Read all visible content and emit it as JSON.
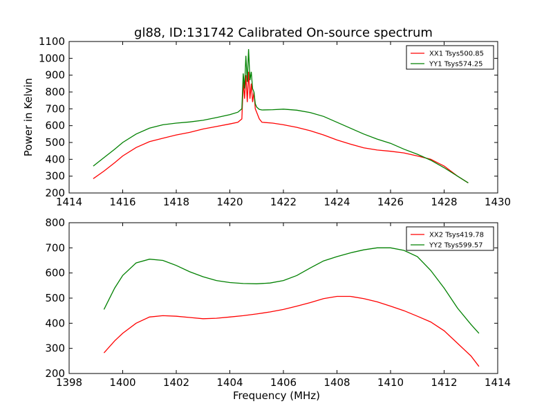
{
  "title": "gl88, ID:131742 Calibrated On-source spectrum",
  "colors": {
    "xx": "#ff0000",
    "yy": "#008000"
  },
  "chart_data": [
    {
      "type": "line",
      "ylabel": "Power in Kelvin",
      "xlabel": "",
      "xlim": [
        1414,
        1430
      ],
      "ylim": [
        200,
        1100
      ],
      "xticks": [
        1414,
        1416,
        1418,
        1420,
        1422,
        1424,
        1426,
        1428,
        1430
      ],
      "yticks": [
        200,
        300,
        400,
        500,
        600,
        700,
        800,
        900,
        1000,
        1100
      ],
      "legend": "top-right",
      "series": [
        {
          "name": "XX1 Tsys500.85",
          "color": "#ff0000",
          "x": [
            1414.9,
            1415.3,
            1415.7,
            1416.0,
            1416.5,
            1417.0,
            1417.5,
            1418.0,
            1418.5,
            1419.0,
            1419.5,
            1420.0,
            1420.3,
            1420.45,
            1420.5,
            1420.55,
            1420.6,
            1420.65,
            1420.7,
            1420.75,
            1420.8,
            1420.85,
            1420.9,
            1420.95,
            1421.0,
            1421.1,
            1421.2,
            1421.6,
            1422.0,
            1422.5,
            1423.0,
            1423.5,
            1424.0,
            1424.5,
            1425.0,
            1425.5,
            1426.0,
            1426.5,
            1427.0,
            1427.5,
            1428.0,
            1428.5,
            1428.9
          ],
          "y": [
            285,
            330,
            380,
            420,
            470,
            505,
            525,
            545,
            560,
            580,
            595,
            610,
            620,
            640,
            860,
            760,
            900,
            740,
            920,
            760,
            850,
            740,
            800,
            700,
            680,
            640,
            620,
            615,
            605,
            590,
            570,
            545,
            515,
            490,
            468,
            455,
            448,
            438,
            420,
            400,
            360,
            300,
            260
          ]
        },
        {
          "name": "YY1 Tsys574.25",
          "color": "#008000",
          "x": [
            1414.9,
            1415.3,
            1415.7,
            1416.0,
            1416.5,
            1417.0,
            1417.5,
            1418.0,
            1418.5,
            1419.0,
            1419.5,
            1420.0,
            1420.3,
            1420.45,
            1420.5,
            1420.55,
            1420.6,
            1420.65,
            1420.7,
            1420.75,
            1420.8,
            1420.85,
            1420.9,
            1420.95,
            1421.0,
            1421.1,
            1421.2,
            1421.6,
            1422.0,
            1422.5,
            1423.0,
            1423.5,
            1424.0,
            1424.5,
            1425.0,
            1425.5,
            1426.0,
            1426.5,
            1427.0,
            1427.5,
            1428.0,
            1428.5,
            1428.9
          ],
          "y": [
            360,
            410,
            460,
            500,
            550,
            585,
            605,
            615,
            622,
            632,
            648,
            665,
            680,
            700,
            910,
            820,
            1015,
            860,
            1055,
            870,
            920,
            820,
            800,
            730,
            710,
            697,
            693,
            695,
            698,
            692,
            678,
            655,
            620,
            585,
            550,
            520,
            495,
            460,
            430,
            395,
            350,
            300,
            260
          ]
        }
      ]
    },
    {
      "type": "line",
      "ylabel": "",
      "xlabel": "Frequency (MHz)",
      "xlim": [
        1398,
        1414
      ],
      "ylim": [
        200,
        800
      ],
      "xticks": [
        1398,
        1400,
        1402,
        1404,
        1406,
        1408,
        1410,
        1412,
        1414
      ],
      "yticks": [
        200,
        300,
        400,
        500,
        600,
        700,
        800
      ],
      "legend": "top-right",
      "series": [
        {
          "name": "XX2 Tsys419.78",
          "color": "#ff0000",
          "x": [
            1399.3,
            1399.7,
            1400.0,
            1400.5,
            1401.0,
            1401.5,
            1402.0,
            1402.5,
            1403.0,
            1403.5,
            1404.0,
            1404.5,
            1405.0,
            1405.5,
            1406.0,
            1406.5,
            1407.0,
            1407.5,
            1408.0,
            1408.5,
            1409.0,
            1409.5,
            1410.0,
            1410.5,
            1411.0,
            1411.5,
            1412.0,
            1412.5,
            1413.0,
            1413.3
          ],
          "y": [
            282,
            330,
            360,
            400,
            425,
            430,
            428,
            423,
            418,
            420,
            425,
            430,
            437,
            445,
            455,
            468,
            482,
            498,
            507,
            507,
            498,
            485,
            468,
            450,
            428,
            405,
            370,
            320,
            270,
            228
          ]
        },
        {
          "name": "YY2 Tsys599.57",
          "color": "#008000",
          "x": [
            1399.3,
            1399.7,
            1400.0,
            1400.5,
            1401.0,
            1401.5,
            1402.0,
            1402.5,
            1403.0,
            1403.5,
            1404.0,
            1404.5,
            1405.0,
            1405.5,
            1406.0,
            1406.5,
            1407.0,
            1407.5,
            1408.0,
            1408.5,
            1409.0,
            1409.5,
            1410.0,
            1410.5,
            1411.0,
            1411.5,
            1412.0,
            1412.5,
            1413.0,
            1413.3
          ],
          "y": [
            455,
            540,
            590,
            640,
            655,
            650,
            630,
            605,
            585,
            570,
            562,
            558,
            557,
            560,
            570,
            590,
            620,
            648,
            665,
            680,
            692,
            700,
            700,
            690,
            665,
            610,
            540,
            460,
            395,
            360
          ]
        }
      ]
    }
  ]
}
